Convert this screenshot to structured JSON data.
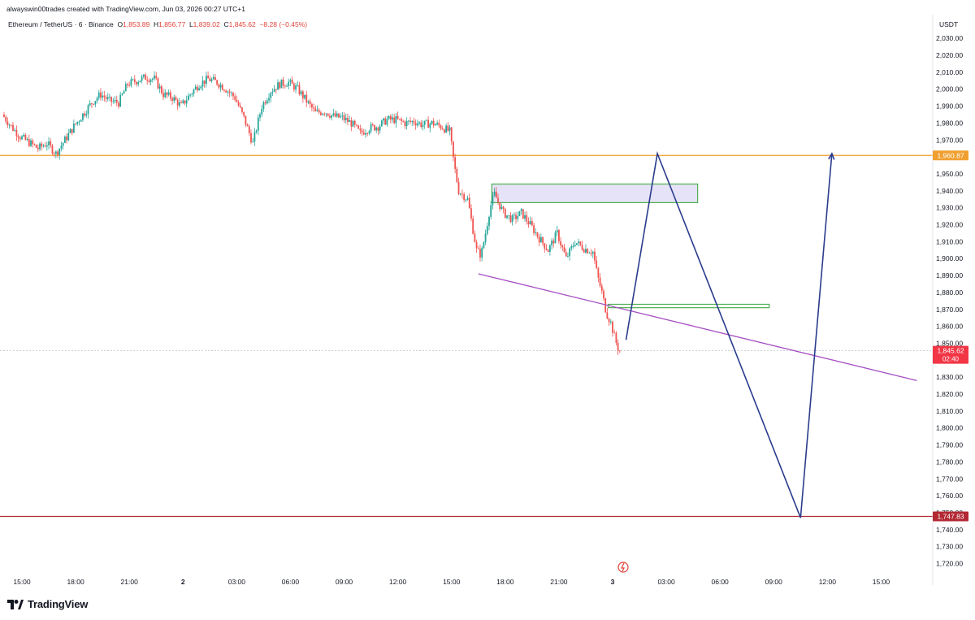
{
  "header": {
    "credit": "alwayswin00trades created with TradingView.com, Jun 03, 2026 00:27 UTC+1"
  },
  "symbol": {
    "name": "Ethereum / TetherUS · 6 · Binance",
    "open_label": "O",
    "open": "1,853.89",
    "high_label": "H",
    "high": "1,856.77",
    "low_label": "L",
    "low": "1,839.02",
    "close_label": "C",
    "close": "1,845.62",
    "change": "−8.28 (−0.45%)"
  },
  "currency": "USDT",
  "brand": {
    "name": "TradingView",
    "logo_icon": "tradingview-logo-icon"
  },
  "colors": {
    "up": "#26a69a",
    "down": "#ef5350",
    "resistance": "#f0a030",
    "support": "#b22833",
    "trendline": "#a64fc4",
    "projection": "#2a3c8c",
    "zone_fill": "#e6e2f7",
    "zone_border": "#4caf50",
    "last_price": "#f23645"
  },
  "chart_data": {
    "type": "candlestick",
    "timeframe": "6",
    "x_tick_labels": [
      "15:00",
      "18:00",
      "21:00",
      "2",
      "03:00",
      "06:00",
      "09:00",
      "12:00",
      "15:00",
      "18:00",
      "21:00",
      "3",
      "03:00",
      "06:00",
      "09:00",
      "12:00",
      "15:00"
    ],
    "y_tick_labels": [
      "2,030.00",
      "2,020.00",
      "2,010.00",
      "2,000.00",
      "1,990.00",
      "1,980.00",
      "1,970.00",
      "1,950.00",
      "1,940.00",
      "1,930.00",
      "1,920.00",
      "1,910.00",
      "1,900.00",
      "1,890.00",
      "1,880.00",
      "1,870.00",
      "1,860.00",
      "1,850.00",
      "1,830.00",
      "1,820.00",
      "1,810.00",
      "1,800.00",
      "1,790.00",
      "1,780.00",
      "1,770.00",
      "1,760.00",
      "1,750.00",
      "1,740.00",
      "1,730.00",
      "1,720.00"
    ],
    "ylim": [
      1715,
      2037
    ],
    "last_price": {
      "value": 1845.62,
      "label": "1,845.62",
      "countdown": "02:40"
    },
    "horizontal_lines": [
      {
        "value": 1960.87,
        "label": "1,960.87",
        "role": "resistance"
      },
      {
        "value": 1747.83,
        "label": "1,747.83",
        "role": "support"
      }
    ],
    "zones": [
      {
        "x_start": "Jun 2 17:15",
        "x_end": "Jun 3 04:45",
        "y_low": 1933,
        "y_high": 1944
      },
      {
        "x_start": "Jun 2 23:45",
        "x_end": "Jun 3 08:45",
        "y_low": 1871,
        "y_high": 1873
      }
    ],
    "trendline": {
      "from": [
        "Jun 2 16:30",
        1891
      ],
      "to": [
        "Jun 3 17:00",
        1828
      ]
    },
    "projection_path": [
      [
        "Jun 3 00:45",
        1852
      ],
      [
        "Jun 3 02:30",
        1962
      ],
      [
        "Jun 3 10:30",
        1747
      ],
      [
        "Jun 3 12:15",
        1962
      ]
    ],
    "price_path": [
      [
        "Jun 1 14:00",
        1985
      ],
      [
        "Jun 1 14:30",
        1978
      ],
      [
        "Jun 1 15:00",
        1972
      ],
      [
        "Jun 1 16:00",
        1965
      ],
      [
        "Jun 1 16:30",
        1968
      ],
      [
        "Jun 1 17:00",
        1962
      ],
      [
        "Jun 1 17:30",
        1970
      ],
      [
        "Jun 1 18:00",
        1978
      ],
      [
        "Jun 1 18:30",
        1985
      ],
      [
        "Jun 1 19:00",
        1992
      ],
      [
        "Jun 1 19:30",
        1997
      ],
      [
        "Jun 1 20:00",
        1993
      ],
      [
        "Jun 1 20:30",
        1992
      ],
      [
        "Jun 1 21:00",
        2003
      ],
      [
        "Jun 1 21:30",
        2005
      ],
      [
        "Jun 1 22:00",
        2007
      ],
      [
        "Jun 1 22:30",
        2006
      ],
      [
        "Jun 1 23:00",
        1997
      ],
      [
        "Jun 1 23:30",
        1995
      ],
      [
        "Jun 2 00:00",
        1990
      ],
      [
        "Jun 2 00:30",
        1997
      ],
      [
        "Jun 2 01:00",
        2003
      ],
      [
        "Jun 2 01:30",
        2006
      ],
      [
        "Jun 2 02:00",
        2004
      ],
      [
        "Jun 2 02:30",
        2000
      ],
      [
        "Jun 2 03:00",
        1995
      ],
      [
        "Jun 2 03:30",
        1983
      ],
      [
        "Jun 2 04:00",
        1968
      ],
      [
        "Jun 2 04:30",
        1990
      ],
      [
        "Jun 2 05:00",
        1999
      ],
      [
        "Jun 2 05:30",
        2003
      ],
      [
        "Jun 2 06:00",
        2004
      ],
      [
        "Jun 2 06:30",
        2000
      ],
      [
        "Jun 2 07:00",
        1993
      ],
      [
        "Jun 2 07:30",
        1986
      ],
      [
        "Jun 2 08:00",
        1987
      ],
      [
        "Jun 2 08:30",
        1984
      ],
      [
        "Jun 2 09:00",
        1983
      ],
      [
        "Jun 2 09:30",
        1980
      ],
      [
        "Jun 2 10:00",
        1974
      ],
      [
        "Jun 2 10:30",
        1977
      ],
      [
        "Jun 2 11:00",
        1978
      ],
      [
        "Jun 2 11:30",
        1982
      ],
      [
        "Jun 2 12:00",
        1982
      ],
      [
        "Jun 2 12:30",
        1980
      ],
      [
        "Jun 2 13:00",
        1981
      ],
      [
        "Jun 2 13:30",
        1979
      ],
      [
        "Jun 2 14:00",
        1980
      ],
      [
        "Jun 2 14:30",
        1978
      ],
      [
        "Jun 2 15:00",
        1975
      ],
      [
        "Jun 2 15:15",
        1955
      ],
      [
        "Jun 2 15:30",
        1940
      ],
      [
        "Jun 2 16:00",
        1935
      ],
      [
        "Jun 2 16:15",
        1920
      ],
      [
        "Jun 2 16:30",
        1905
      ],
      [
        "Jun 2 16:45",
        1902
      ],
      [
        "Jun 2 17:00",
        1915
      ],
      [
        "Jun 2 17:15",
        1930
      ],
      [
        "Jun 2 17:30",
        1938
      ],
      [
        "Jun 2 18:00",
        1927
      ],
      [
        "Jun 2 18:30",
        1923
      ],
      [
        "Jun 2 19:00",
        1927
      ],
      [
        "Jun 2 19:30",
        1920
      ],
      [
        "Jun 2 20:00",
        1912
      ],
      [
        "Jun 2 20:30",
        1905
      ],
      [
        "Jun 2 21:00",
        1915
      ],
      [
        "Jun 2 21:30",
        1900
      ],
      [
        "Jun 2 22:00",
        1910
      ],
      [
        "Jun 2 22:30",
        1906
      ],
      [
        "Jun 2 23:00",
        1904
      ],
      [
        "Jun 2 23:15",
        1890
      ],
      [
        "Jun 2 23:30",
        1880
      ],
      [
        "Jun 2 23:45",
        1868
      ],
      [
        "Jun 3 00:00",
        1862
      ],
      [
        "Jun 3 00:15",
        1852
      ],
      [
        "Jun 3 00:27",
        1845.62
      ]
    ]
  }
}
